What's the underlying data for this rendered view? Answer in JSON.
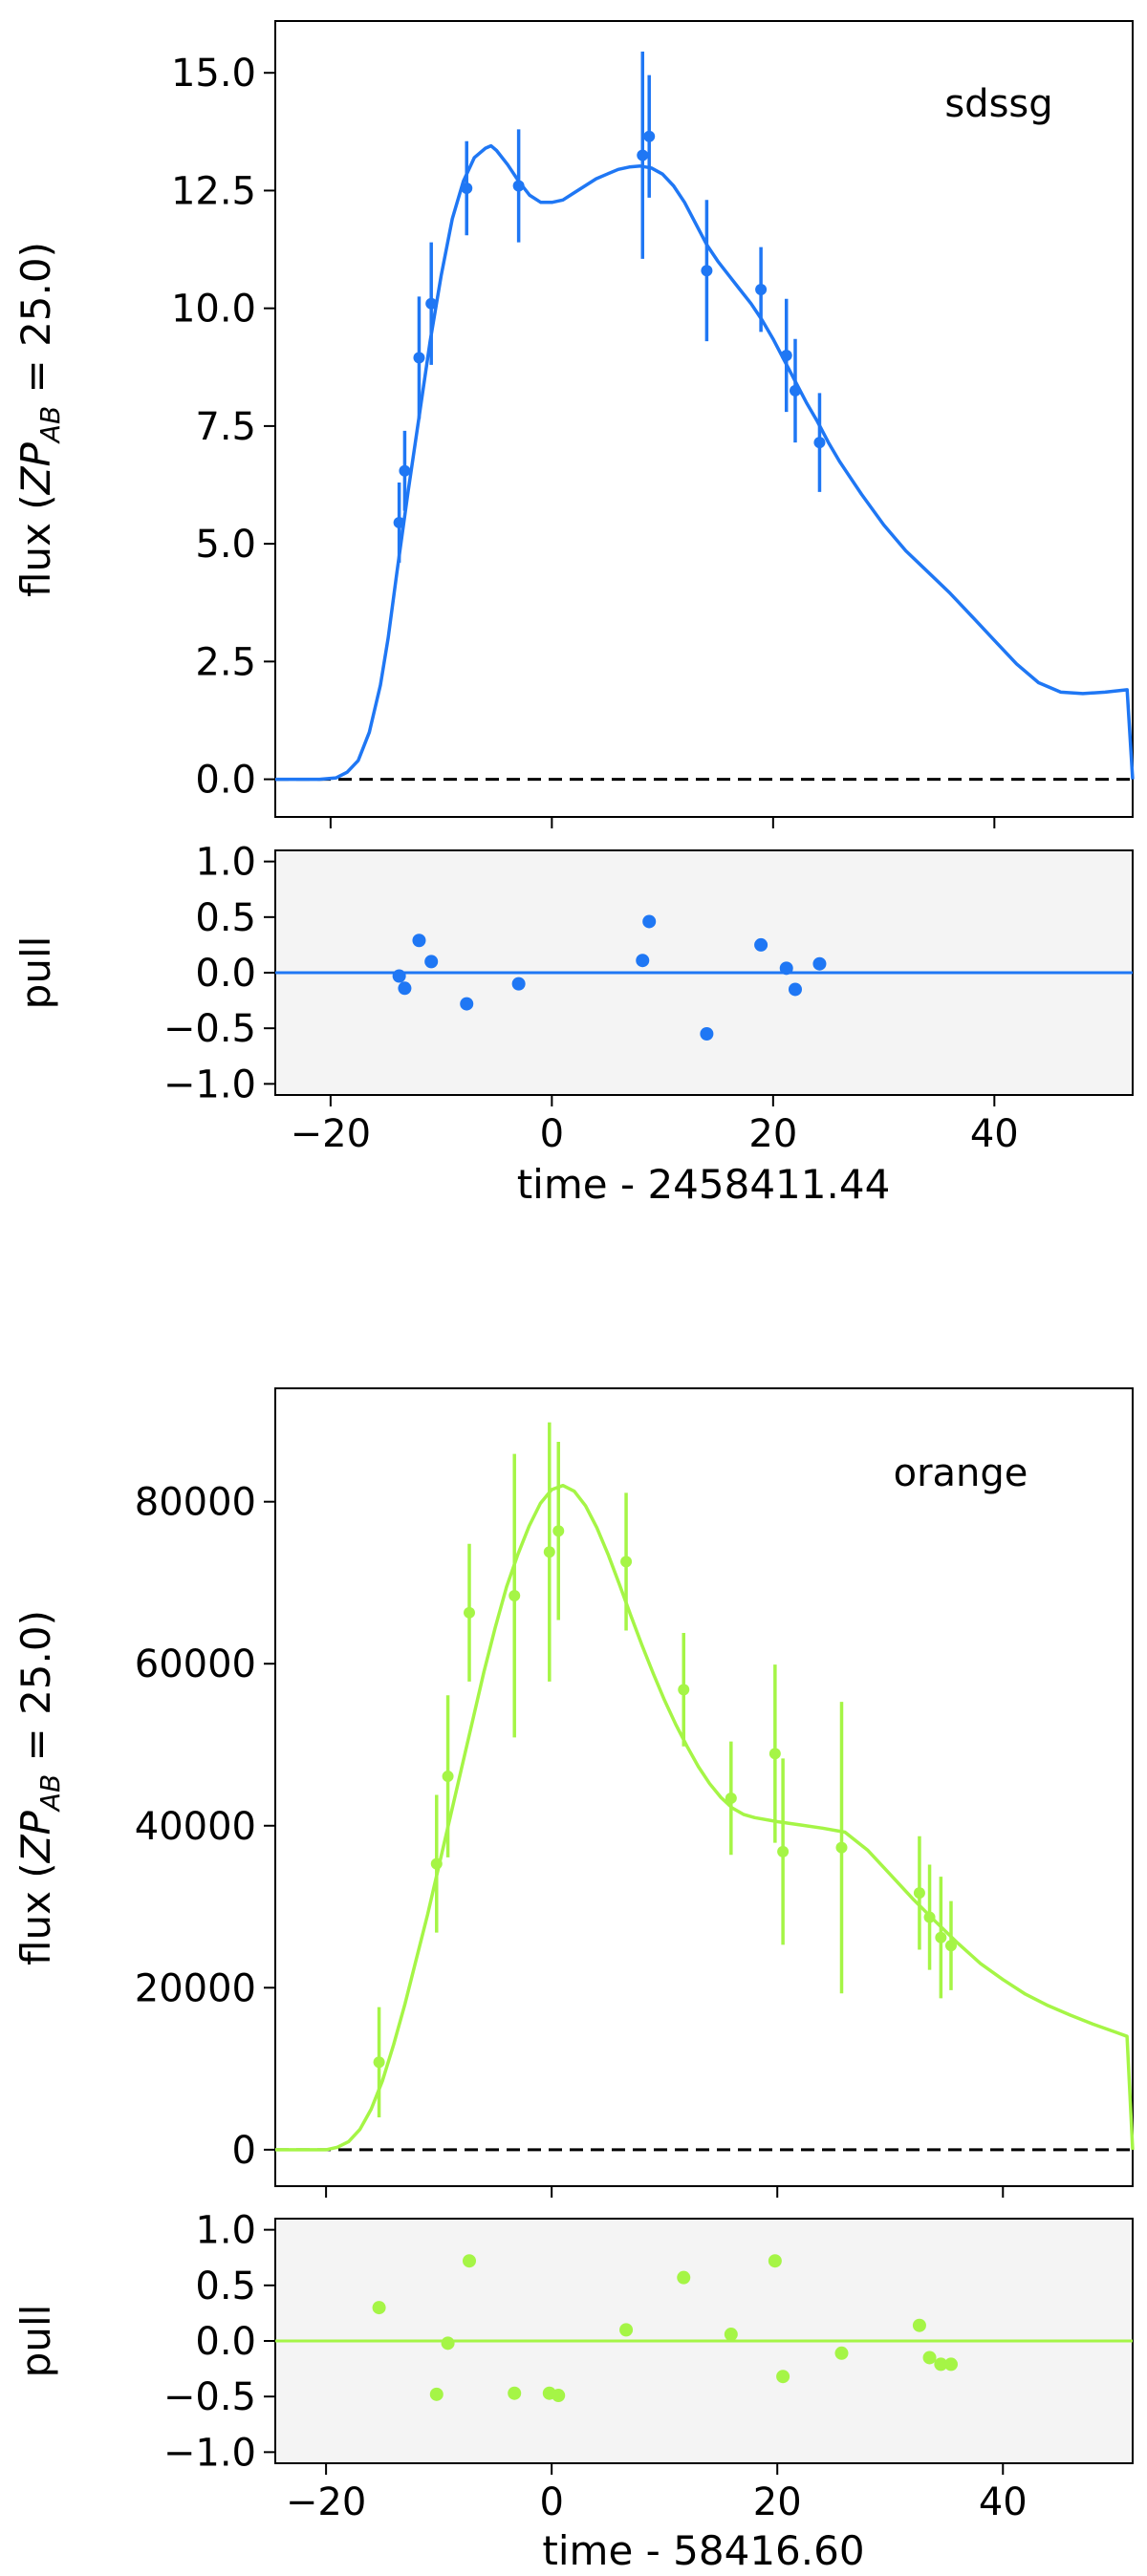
{
  "chart_data": [
    {
      "type": "line",
      "band": "sdssg",
      "color": "#1f77f4",
      "xlabel": "time - 2458411.44",
      "ylabel_prefix": "flux (",
      "ylabel_math": "ZP",
      "ylabel_sub": "AB",
      "ylabel_suffix": " = 25.0)",
      "pull_label": "pull",
      "xlim": [
        -25,
        52.5
      ],
      "ylim": [
        -0.8,
        16.1
      ],
      "pull_ylim": [
        -1.1,
        1.1
      ],
      "xticks": [
        -20,
        0,
        20,
        40
      ],
      "xtick_labels": [
        "−20",
        "0",
        "20",
        "40"
      ],
      "yticks": [
        0.0,
        2.5,
        5.0,
        7.5,
        10.0,
        12.5,
        15.0
      ],
      "ytick_labels": [
        "0.0",
        "2.5",
        "5.0",
        "7.5",
        "10.0",
        "12.5",
        "15.0"
      ],
      "pull_yticks": [
        -1.0,
        -0.5,
        0.0,
        0.5,
        1.0
      ],
      "pull_ytick_labels": [
        "−1.0",
        "−0.5",
        "0.0",
        "0.5",
        "1.0"
      ],
      "model": {
        "x": [
          -25,
          -21,
          -19.5,
          -18.5,
          -17.5,
          -16.5,
          -15.5,
          -14.8,
          -14,
          -13,
          -12,
          -11,
          -10,
          -9,
          -8,
          -7,
          -6,
          -5.5,
          -5,
          -4,
          -3,
          -2,
          -1,
          0,
          1,
          2,
          3,
          4,
          5,
          6,
          7,
          8,
          9,
          10,
          11,
          12,
          13,
          14,
          15,
          16,
          17,
          18,
          19,
          20,
          21,
          22,
          23,
          24,
          25,
          26,
          28,
          30,
          32,
          34,
          36,
          38,
          40,
          42,
          44,
          46,
          48,
          50,
          52,
          52.5
        ],
        "y": [
          0.0,
          0.0,
          0.03,
          0.15,
          0.4,
          1.0,
          2.0,
          3.0,
          4.4,
          6.1,
          7.7,
          9.3,
          10.7,
          11.9,
          12.7,
          13.2,
          13.4,
          13.45,
          13.35,
          13.05,
          12.7,
          12.4,
          12.25,
          12.25,
          12.3,
          12.45,
          12.6,
          12.75,
          12.85,
          12.95,
          13.0,
          13.02,
          12.98,
          12.85,
          12.6,
          12.25,
          11.8,
          11.35,
          11.0,
          10.7,
          10.4,
          10.1,
          9.75,
          9.35,
          8.9,
          8.45,
          8.0,
          7.6,
          7.15,
          6.75,
          6.05,
          5.4,
          4.85,
          4.4,
          3.95,
          3.45,
          2.95,
          2.45,
          2.05,
          1.85,
          1.82,
          1.85,
          1.9,
          0.0
        ]
      },
      "points": {
        "x": [
          -13.8,
          -13.3,
          -12.0,
          -10.9,
          -7.7,
          -3.0,
          8.2,
          8.8,
          14.0,
          18.9,
          21.2,
          22.0,
          24.2
        ],
        "y": [
          5.45,
          6.55,
          8.95,
          10.1,
          12.55,
          12.6,
          13.25,
          13.65,
          10.8,
          10.4,
          9.0,
          8.25,
          7.15
        ],
        "err": [
          0.85,
          0.85,
          1.3,
          1.3,
          1.0,
          1.2,
          2.2,
          1.3,
          1.5,
          0.9,
          1.2,
          1.1,
          1.05
        ],
        "pull": [
          -0.03,
          -0.14,
          0.29,
          0.1,
          -0.28,
          -0.1,
          0.11,
          0.46,
          -0.55,
          0.25,
          0.04,
          -0.15,
          0.08
        ]
      }
    },
    {
      "type": "line",
      "band": "orange",
      "color": "#a5f546",
      "xlabel": "time - 58416.60",
      "ylabel_prefix": "flux (",
      "ylabel_math": "ZP",
      "ylabel_sub": "AB",
      "ylabel_suffix": " = 25.0)",
      "pull_label": "pull",
      "xlim": [
        -24.5,
        51.5
      ],
      "ylim": [
        -4500,
        94000
      ],
      "pull_ylim": [
        -1.1,
        1.1
      ],
      "xticks": [
        -20,
        0,
        20,
        40
      ],
      "xtick_labels": [
        "−20",
        "0",
        "20",
        "40"
      ],
      "yticks": [
        0,
        20000,
        40000,
        60000,
        80000
      ],
      "ytick_labels": [
        "0",
        "20000",
        "40000",
        "60000",
        "80000"
      ],
      "pull_yticks": [
        -1.0,
        -0.5,
        0.0,
        0.5,
        1.0
      ],
      "pull_ytick_labels": [
        "−1.0",
        "−0.5",
        "0.0",
        "0.5",
        "1.0"
      ],
      "model": {
        "x": [
          -24.5,
          -20,
          -19,
          -18,
          -17,
          -16,
          -15,
          -14,
          -13,
          -12,
          -11,
          -10,
          -9,
          -8,
          -7,
          -6,
          -5,
          -4,
          -3,
          -2,
          -1,
          0,
          1,
          2,
          3,
          4,
          5,
          6,
          7,
          8,
          9,
          10,
          11,
          12,
          13,
          14,
          15,
          16,
          17,
          18,
          20,
          22,
          24,
          26,
          28,
          30,
          32,
          34,
          36,
          38,
          40,
          42,
          44,
          46,
          48,
          50,
          51,
          51.5
        ],
        "y": [
          0,
          0,
          300,
          1000,
          2500,
          5000,
          8500,
          13000,
          18000,
          23500,
          29000,
          35000,
          41000,
          47000,
          53000,
          59000,
          64500,
          69500,
          73500,
          77000,
          79800,
          81500,
          82000,
          81300,
          79500,
          76800,
          73500,
          69800,
          66000,
          62300,
          58800,
          55500,
          52500,
          49800,
          47300,
          45200,
          43500,
          42200,
          41400,
          41000,
          40500,
          40100,
          39700,
          39200,
          37000,
          34000,
          31000,
          28200,
          25500,
          23000,
          21000,
          19200,
          17800,
          16600,
          15500,
          14500,
          14000,
          0
        ]
      },
      "points": {
        "x": [
          -15.3,
          -10.2,
          -9.2,
          -7.3,
          -3.3,
          -0.2,
          0.6,
          6.6,
          11.7,
          15.9,
          19.8,
          20.5,
          25.7,
          32.6,
          33.5,
          34.5,
          35.4
        ],
        "y": [
          10800,
          35300,
          46100,
          66300,
          68400,
          73800,
          76400,
          72600,
          56800,
          43400,
          48900,
          36800,
          37300,
          31700,
          28700,
          26200,
          25200
        ],
        "err": [
          6800,
          8500,
          10000,
          8500,
          17500,
          16000,
          11000,
          8500,
          7000,
          7000,
          11000,
          11500,
          18000,
          7000,
          6500,
          7500,
          5500
        ],
        "pull": [
          0.3,
          -0.48,
          -0.02,
          0.72,
          -0.47,
          -0.47,
          -0.49,
          0.1,
          0.57,
          0.06,
          0.72,
          -0.32,
          -0.11,
          0.14,
          -0.15,
          -0.21,
          -0.21
        ]
      }
    }
  ]
}
